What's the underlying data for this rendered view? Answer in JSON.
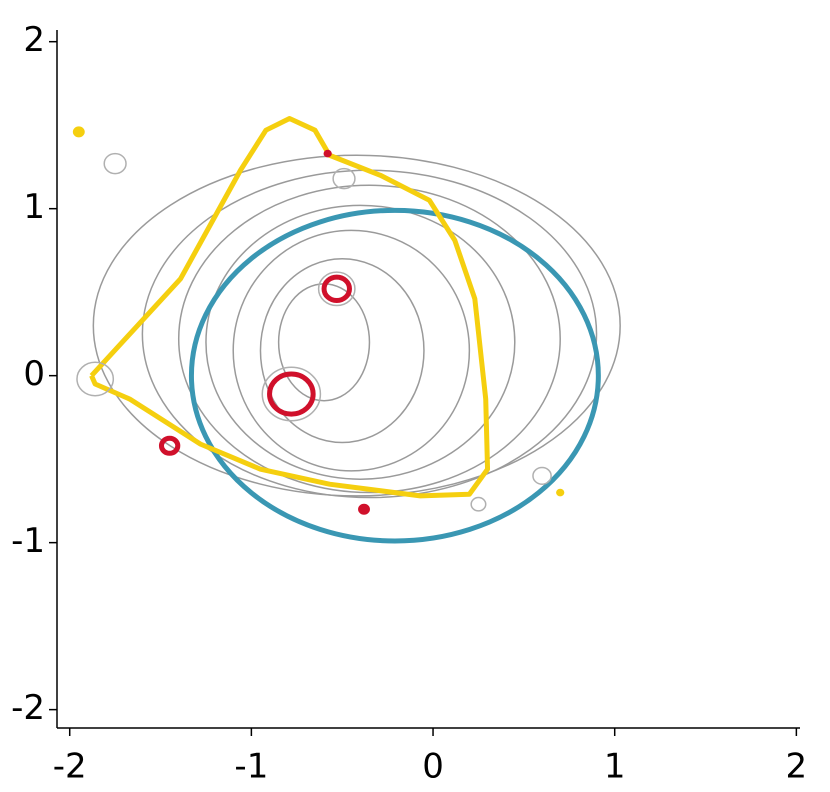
{
  "chart_data": {
    "type": "scatter",
    "xlim": [
      -2.07,
      2.02
    ],
    "ylim": [
      -2.11,
      2.07
    ],
    "xticks": [
      -2,
      -1,
      0,
      1,
      2
    ],
    "yticks": [
      -2,
      -1,
      0,
      1,
      2
    ],
    "ellipses": [
      {
        "color": "#9a9a9a",
        "cx": -0.6,
        "cy": 0.2,
        "rx": 0.25,
        "ry": 0.35
      },
      {
        "color": "#9a9a9a",
        "cx": -0.5,
        "cy": 0.15,
        "rx": 0.45,
        "ry": 0.55
      },
      {
        "color": "#9a9a9a",
        "cx": -0.45,
        "cy": 0.15,
        "rx": 0.65,
        "ry": 0.72
      },
      {
        "color": "#9a9a9a",
        "cx": -0.4,
        "cy": 0.2,
        "rx": 0.85,
        "ry": 0.82
      },
      {
        "color": "#9a9a9a",
        "cx": -0.35,
        "cy": 0.22,
        "rx": 1.05,
        "ry": 0.92
      },
      {
        "color": "#9a9a9a",
        "cx": -0.35,
        "cy": 0.25,
        "rx": 1.25,
        "ry": 0.98
      },
      {
        "color": "#9a9a9a",
        "cx": -0.42,
        "cy": 0.3,
        "rx": 1.45,
        "ry": 1.02
      },
      {
        "color": "#3a97b3",
        "cx": -0.21,
        "cy": 0.0,
        "rx": 1.12,
        "ry": 0.99
      }
    ],
    "lines": [
      {
        "color": "#f5cf0f",
        "x": [
          -1.88,
          -1.39,
          -1.06,
          -0.92,
          -0.79,
          -0.65,
          -0.57,
          -0.29,
          -0.02,
          0.12,
          0.23,
          0.29,
          0.3,
          0.2,
          -0.07,
          -0.57,
          -0.95,
          -1.28,
          -1.67,
          -1.86,
          -1.88
        ],
        "y": [
          0.0,
          0.58,
          1.23,
          1.47,
          1.54,
          1.47,
          1.32,
          1.2,
          1.05,
          0.81,
          0.46,
          -0.14,
          -0.56,
          -0.71,
          -0.72,
          -0.65,
          -0.56,
          -0.41,
          -0.14,
          -0.05,
          0.0
        ]
      }
    ],
    "circles": [
      {
        "color": "#b0b0b0",
        "x": -1.75,
        "y": 1.27,
        "r": 0.06,
        "filled": false
      },
      {
        "color": "#b0b0b0",
        "x": -0.49,
        "y": 1.18,
        "r": 0.06,
        "filled": false
      },
      {
        "color": "#b0b0b0",
        "x": -1.86,
        "y": -0.02,
        "r": 0.1,
        "filled": false
      },
      {
        "color": "#b0b0b0",
        "x": 0.6,
        "y": -0.6,
        "r": 0.05,
        "filled": false
      },
      {
        "color": "#b0b0b0",
        "x": 0.25,
        "y": -0.77,
        "r": 0.04,
        "filled": false
      },
      {
        "color": "#b0b0b0",
        "x": -0.53,
        "y": 0.52,
        "r": 0.1,
        "filled": false
      },
      {
        "color": "#b0b0b0",
        "x": -0.78,
        "y": -0.11,
        "r": 0.16,
        "filled": false
      },
      {
        "color": "#d0102b",
        "x": -0.53,
        "y": 0.52,
        "r": 0.07,
        "filled": false
      },
      {
        "color": "#d0102b",
        "x": -0.78,
        "y": -0.11,
        "r": 0.12,
        "filled": false
      },
      {
        "color": "#d0102b",
        "x": -1.45,
        "y": -0.42,
        "r": 0.045,
        "filled": false
      },
      {
        "color": "#d0102b",
        "x": -0.38,
        "y": -0.8,
        "r": 0.03,
        "filled": true
      },
      {
        "color": "#d0102b",
        "x": -0.58,
        "y": 1.33,
        "r": 0.02,
        "filled": true
      },
      {
        "color": "#f5cf0f",
        "x": -1.95,
        "y": 1.46,
        "r": 0.03,
        "filled": true
      },
      {
        "color": "#f5cf0f",
        "x": 0.7,
        "y": -0.7,
        "r": 0.02,
        "filled": true
      }
    ]
  }
}
